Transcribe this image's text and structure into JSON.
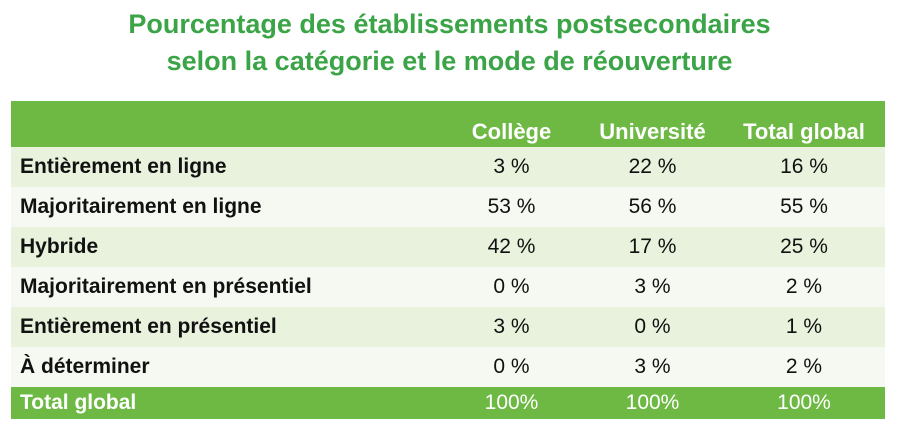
{
  "title_line1": "Pourcentage des établissements postsecondaires",
  "title_line2": "selon la catégorie et le mode de réouverture",
  "chart_data": {
    "type": "table",
    "title": "Pourcentage des établissements postsecondaires selon la catégorie et le mode de réouverture",
    "columns": [
      "",
      "Collège",
      "Université",
      "Total global"
    ],
    "rows": [
      {
        "label": "Entièrement en ligne",
        "values": [
          "3 %",
          "22 %",
          "16 %"
        ]
      },
      {
        "label": "Majoritairement en ligne",
        "values": [
          "53 %",
          "56 %",
          "55 %"
        ]
      },
      {
        "label": "Hybride",
        "values": [
          "42 %",
          "17 %",
          "25 %"
        ]
      },
      {
        "label": "Majoritairement en présentiel",
        "values": [
          "0 %",
          "3 %",
          "2 %"
        ]
      },
      {
        "label": "Entièrement en présentiel",
        "values": [
          "3 %",
          "0 %",
          "1 %"
        ]
      },
      {
        "label": "À déterminer",
        "values": [
          "0 %",
          "3 %",
          "2 %"
        ]
      }
    ],
    "total": {
      "label": "Total global",
      "values": [
        "100%",
        "100%",
        "100%"
      ]
    }
  },
  "colors": {
    "title": "#3ba447",
    "header_bg": "#6db944",
    "row_odd": "#e8f2dc",
    "row_even": "#f6f9f1"
  }
}
